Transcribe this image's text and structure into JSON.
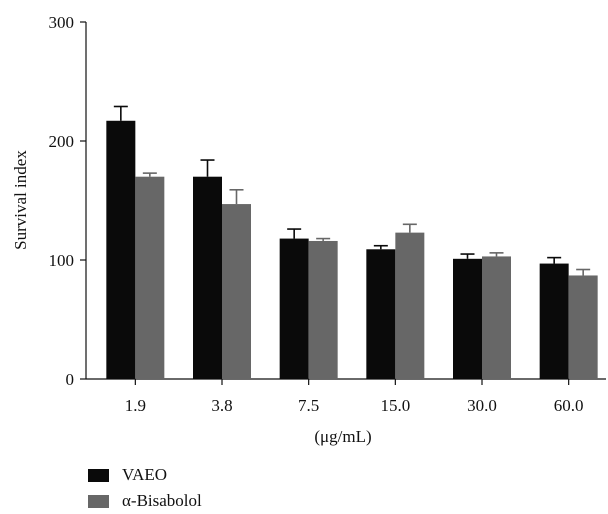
{
  "chart_data": {
    "type": "bar",
    "title": "",
    "xlabel": "(μg/mL)",
    "ylabel": "Survival index",
    "categories": [
      "1.9",
      "3.8",
      "7.5",
      "15.0",
      "30.0",
      "60.0"
    ],
    "ylim": [
      0,
      300
    ],
    "yticks": [
      "0",
      "100",
      "200",
      "300"
    ],
    "grid": false,
    "legend_position": "bottom-left",
    "series": [
      {
        "name": "VAEO",
        "color": "#0a0a0a",
        "values": [
          217,
          170,
          118,
          109,
          101,
          97
        ],
        "errors": [
          12,
          14,
          8,
          3,
          4,
          5
        ]
      },
      {
        "name": "α-Bisabolol",
        "color": "#676767",
        "values": [
          170,
          147,
          116,
          123,
          103,
          87
        ],
        "errors": [
          3,
          12,
          2,
          7,
          3,
          5
        ]
      }
    ]
  }
}
